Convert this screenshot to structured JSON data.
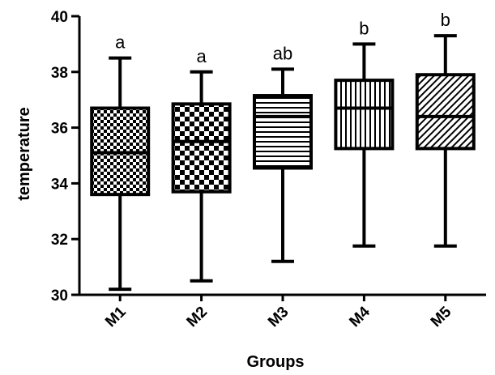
{
  "chart_data": {
    "type": "box",
    "xlabel": "Groups",
    "ylabel": "temperature",
    "ylim": [
      30,
      40
    ],
    "yticks": [
      30,
      32,
      34,
      36,
      38,
      40
    ],
    "grid": false,
    "categories": [
      "M1",
      "M2",
      "M3",
      "M4",
      "M5"
    ],
    "boxes": [
      {
        "name": "M1",
        "min": 30.2,
        "q1": 33.6,
        "median": 35.1,
        "q3": 36.7,
        "max": 38.5,
        "pattern": "checker-fine",
        "significance": "a"
      },
      {
        "name": "M2",
        "min": 30.5,
        "q1": 33.7,
        "median": 35.5,
        "q3": 36.85,
        "max": 38.0,
        "pattern": "checker-coarse",
        "significance": "a"
      },
      {
        "name": "M3",
        "min": 31.2,
        "q1": 34.55,
        "median": 36.4,
        "q3": 37.15,
        "max": 38.1,
        "pattern": "horizontal-lines",
        "significance": "ab"
      },
      {
        "name": "M4",
        "min": 31.75,
        "q1": 35.25,
        "median": 36.7,
        "q3": 37.7,
        "max": 39.0,
        "pattern": "vertical-lines",
        "significance": "b"
      },
      {
        "name": "M5",
        "min": 31.75,
        "q1": 35.25,
        "median": 36.4,
        "q3": 37.9,
        "max": 39.3,
        "pattern": "diagonal-lines",
        "significance": "b"
      }
    ]
  }
}
